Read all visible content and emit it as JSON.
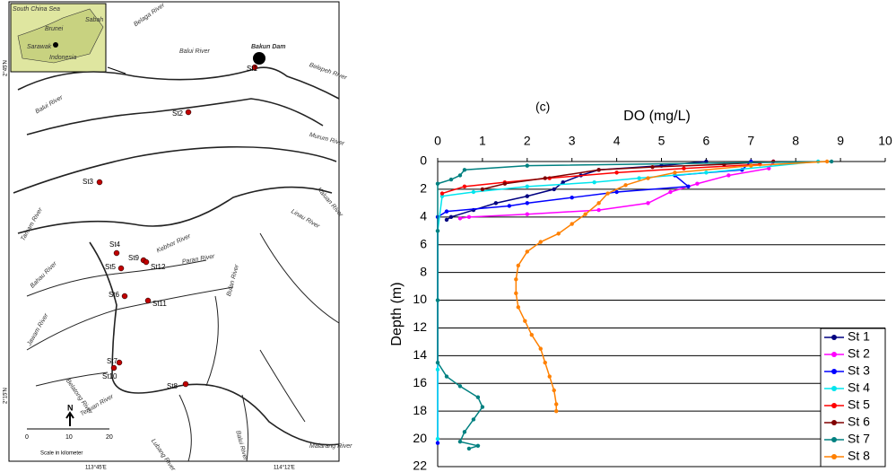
{
  "map": {
    "inset": [
      "South China Sea",
      "Sabah",
      "Brunei",
      "Sarawak",
      "Indonesia"
    ],
    "labels": [
      "Belaga River",
      "Balui River",
      "Bakun Dam",
      "Belepeh River",
      "Balui River",
      "Murum River",
      "Kaluan River",
      "Linau River",
      "Tamam River",
      "Kebhor River",
      "Paran River",
      "Bahau River",
      "Bulan River",
      "Jawam River",
      "Belatong River",
      "Tenuan River",
      "Lubang River",
      "Balui River",
      "Malarang River"
    ],
    "stations": [
      "St1",
      "St2",
      "St3",
      "St4",
      "St9",
      "St5",
      "St12",
      "St6",
      "St11",
      "St7",
      "St10",
      "St8"
    ],
    "scale": [
      "0",
      "10",
      "20"
    ],
    "scale_title": "Scale in kilometer",
    "north": "N",
    "coords": [
      "2°45'N",
      "2°15'N",
      "113°45'E",
      "114°12'E"
    ]
  },
  "chart_data": {
    "type": "line",
    "annotation": "(c)",
    "x_label": "DO (mg/L)",
    "y_label": "Depth (m)",
    "xlim": [
      0,
      10
    ],
    "xticks": [
      0,
      1,
      2,
      3,
      4,
      5,
      6,
      7,
      8,
      9,
      10
    ],
    "ylim": [
      0,
      22
    ],
    "yticks": [
      0,
      2,
      4,
      6,
      8,
      10,
      12,
      14,
      16,
      18,
      20,
      22
    ],
    "y_inverted": true,
    "grid": true,
    "legend": "lower right",
    "series": [
      {
        "name": "St 1",
        "color": "#000080",
        "x": [
          6.0,
          5.0,
          3.6,
          3.2,
          2.8,
          2.6,
          2.0,
          1.3,
          0.8,
          0.3,
          0.2
        ],
        "y": [
          0,
          0.3,
          0.6,
          1,
          1.5,
          2,
          2.5,
          3,
          3.5,
          4,
          4.2
        ]
      },
      {
        "name": "St 2",
        "color": "#ff00ff",
        "x": [
          7.5,
          7.4,
          6.5,
          5.8,
          5.2,
          4.7,
          3.6,
          2.0,
          0.7,
          0.5
        ],
        "y": [
          0,
          0.5,
          1,
          1.6,
          2.2,
          3,
          3.5,
          3.8,
          4,
          4.1
        ]
      },
      {
        "name": "St 3",
        "color": "#0000ff",
        "x": [
          7.0,
          6.8,
          5.3,
          5.6,
          4.0,
          3.0,
          2.0,
          1.6,
          0.2,
          0,
          0
        ],
        "y": [
          0,
          0.6,
          1,
          1.8,
          2.2,
          2.6,
          3.0,
          3.2,
          3.6,
          4,
          20.3
        ]
      },
      {
        "name": "St 4",
        "color": "#00e5ee",
        "x": [
          8.5,
          6.0,
          4.5,
          3.5,
          2.0,
          0.8,
          0.1,
          0,
          0,
          0,
          0
        ],
        "y": [
          0,
          0.8,
          1.2,
          1.5,
          1.8,
          2.2,
          2.5,
          5,
          10,
          15,
          20
        ]
      },
      {
        "name": "St 5",
        "color": "#ff0000",
        "x": [
          7.2,
          5.5,
          4.0,
          2.5,
          1.5,
          0.6,
          0.1
        ],
        "y": [
          0.2,
          0.5,
          0.8,
          1.2,
          1.5,
          1.8,
          2.3
        ]
      },
      {
        "name": "St 6",
        "color": "#800000",
        "x": [
          7.5,
          6.4,
          4.8,
          3.6,
          2.4,
          1.5,
          1.0
        ],
        "y": [
          0,
          0.2,
          0.4,
          0.6,
          1.2,
          1.6,
          2.0
        ]
      },
      {
        "name": "St 7",
        "color": "#008080",
        "x": [
          8.8,
          2.0,
          0.6,
          0.5,
          0.3,
          0,
          0,
          0,
          0,
          0.2,
          0.5,
          0.9,
          1.0,
          0.8,
          0.6,
          0.5,
          0.9,
          0.7
        ],
        "y": [
          0,
          0.3,
          0.6,
          1,
          1.3,
          1.6,
          5,
          10,
          14.5,
          15.5,
          16.2,
          17.0,
          17.7,
          18.6,
          19.5,
          20.2,
          20.5,
          20.7
        ]
      },
      {
        "name": "St 8",
        "color": "#ff8000",
        "x": [
          8.7,
          7.0,
          5.3,
          4.7,
          4.2,
          3.8,
          3.6,
          3.3,
          3.0,
          2.7,
          2.3,
          2.0,
          1.8,
          1.75,
          1.75,
          1.8,
          1.95,
          2.1,
          2.3,
          2.4,
          2.5,
          2.6,
          2.65,
          2.65
        ],
        "y": [
          0,
          0.3,
          0.8,
          1.2,
          1.7,
          2.3,
          3,
          3.8,
          4.5,
          5.2,
          5.8,
          6.5,
          7.5,
          8.5,
          9.5,
          10.5,
          11.5,
          12.5,
          13.5,
          14.5,
          15.5,
          16.5,
          17.5,
          18
        ]
      }
    ]
  }
}
